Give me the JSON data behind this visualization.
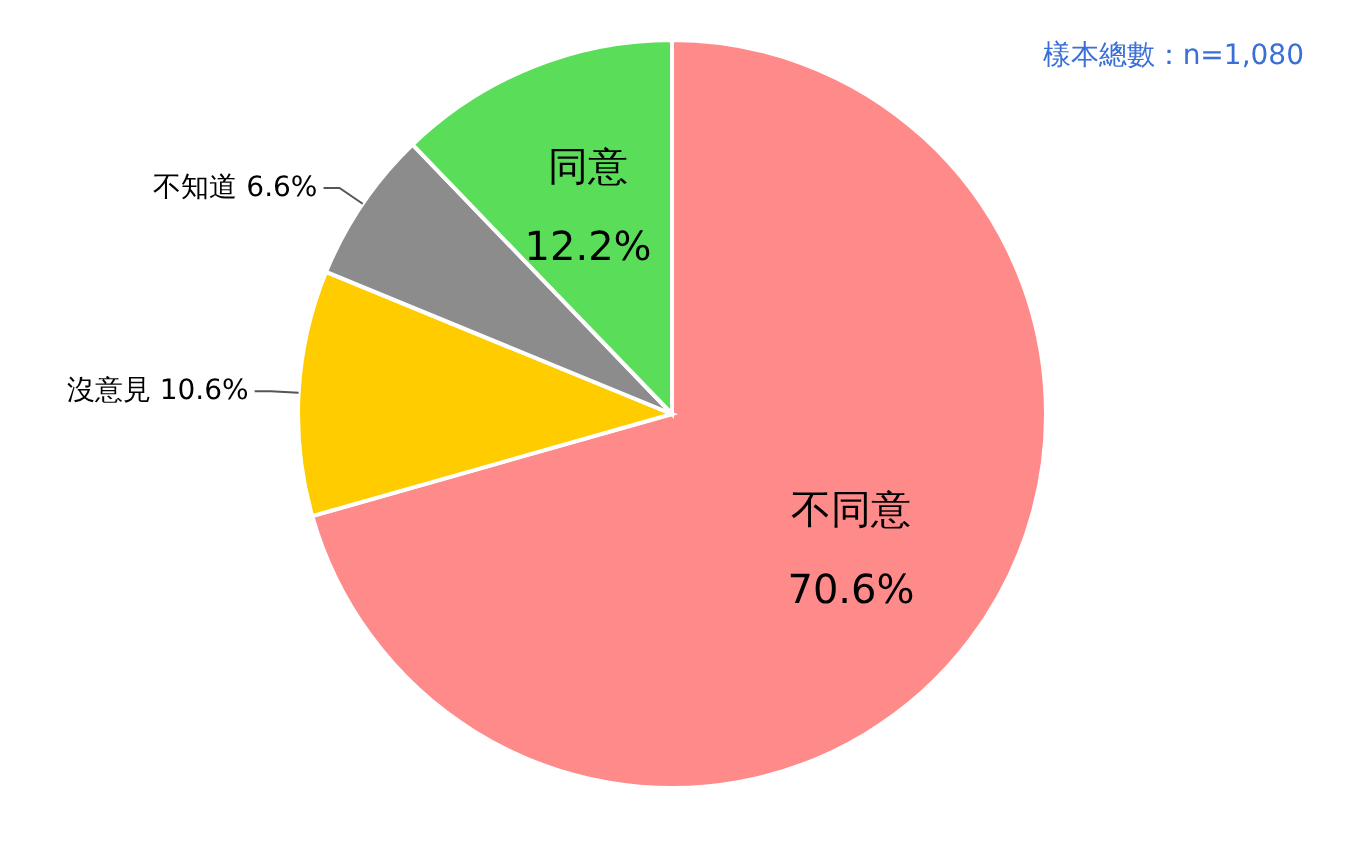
{
  "chart_data": {
    "type": "pie",
    "categories": [
      "不同意",
      "沒意見",
      "不知道",
      "同意"
    ],
    "values": [
      70.6,
      10.6,
      6.6,
      12.2
    ],
    "colors": [
      "#ff8a8a",
      "#ffcc00",
      "#8c8c8c",
      "#5ade5a"
    ],
    "value_labels": [
      "70.6%",
      "10.6%",
      "6.6%",
      "12.2%"
    ],
    "annotations": [
      "樣本總數：n=1,080"
    ]
  }
}
